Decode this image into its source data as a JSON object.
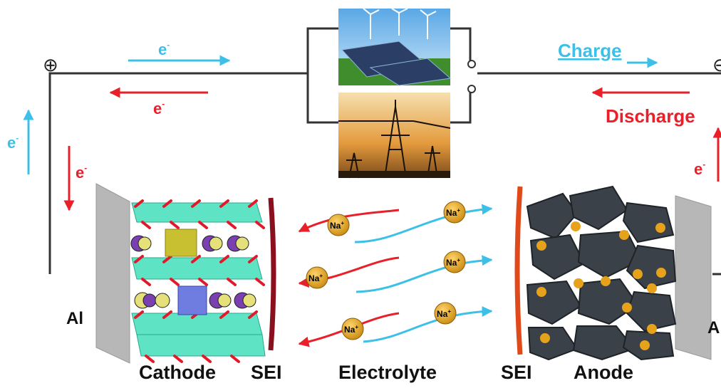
{
  "circuit": {
    "positive_symbol": "⊕",
    "negative_symbol": "⊖",
    "electron_label": "e",
    "electron_sup": "-",
    "charge_label": "Charge",
    "discharge_label": "Discharge"
  },
  "ion_label": "Na",
  "ion_sup": "+",
  "labels": {
    "al_left": "Al",
    "al_right": "Al",
    "cathode": "Cathode",
    "sei_cathode": "SEI",
    "electrolyte": "Electrolyte",
    "sei_anode": "SEI",
    "anode": "Anode"
  },
  "colors": {
    "charge": "#3cc0e8",
    "discharge": "#e8202a",
    "wire": "#333333",
    "ion": "#e6a21a",
    "collector": "#b7b7b7",
    "cathode_layer": "#5fe3c5",
    "anode_particle": "#3a4149",
    "sei_cathode": "#8a1020",
    "sei_anode": "#e04a1a"
  },
  "icons": {
    "renewable": "solar-wind-photo",
    "grid": "power-tower-photo"
  }
}
